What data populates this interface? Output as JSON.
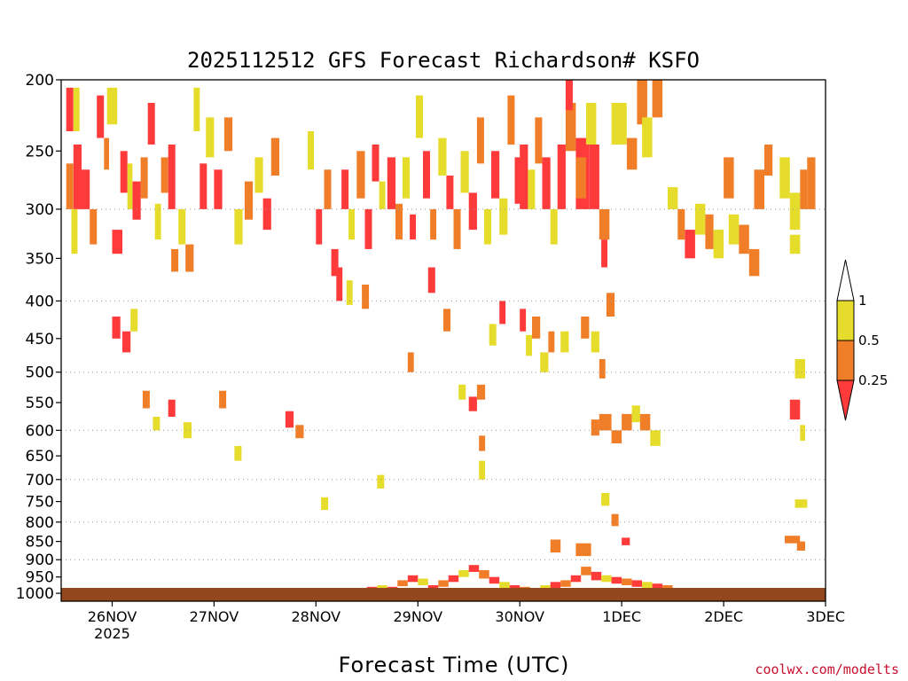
{
  "title": "2025112512 GFS Forecast Richardson# KSFO",
  "x_axis_title": "Forecast Time (UTC)",
  "credit": "coolwx.com/modelts",
  "colors": {
    "below_0_25": "#ff3a3a",
    "0_25_to_0_5": "#f07e28",
    "0_5_to_1": "#e6dc2c",
    "above_1": "#ffffff",
    "ground": "#92471d",
    "grid": "#9a9a9a"
  },
  "colorbar": {
    "labels": [
      "1",
      "0.5",
      "0.25"
    ]
  },
  "chart_data": {
    "type": "heatmap",
    "title": "2025112512 GFS Forecast Richardson# KSFO",
    "xlabel": "Forecast Time (UTC)",
    "ylabel": "",
    "x_ticks": [
      {
        "label": "26NOV",
        "sub": "2025",
        "day": 1
      },
      {
        "label": "27NOV",
        "sub": "",
        "day": 2
      },
      {
        "label": "28NOV",
        "sub": "",
        "day": 3
      },
      {
        "label": "29NOV",
        "sub": "",
        "day": 4
      },
      {
        "label": "30NOV",
        "sub": "",
        "day": 5
      },
      {
        "label": "1DEC",
        "sub": "",
        "day": 6
      },
      {
        "label": "2DEC",
        "sub": "",
        "day": 7
      },
      {
        "label": "3DEC",
        "sub": "",
        "day": 8
      }
    ],
    "xlim_days": [
      0.5,
      8.0
    ],
    "y_ticks": [
      200,
      250,
      300,
      350,
      400,
      450,
      500,
      550,
      600,
      650,
      700,
      750,
      800,
      850,
      900,
      950,
      1000
    ],
    "ylim_hpa": [
      200,
      1025
    ],
    "y_scale": "log",
    "dotted_gridlines_hpa": [
      300,
      400,
      500,
      600,
      700,
      800,
      900
    ],
    "legend_placement": "right",
    "classes": [
      {
        "label": "< 0.25",
        "color": "#ff3a3a"
      },
      {
        "label": "0.25 - 0.5",
        "color": "#f07e28"
      },
      {
        "label": "0.5 - 1",
        "color": "#e6dc2c"
      }
    ],
    "cells": [
      [
        0.55,
        0.62,
        205,
        235,
        0
      ],
      [
        0.62,
        0.68,
        205,
        235,
        2
      ],
      [
        0.62,
        0.7,
        245,
        300,
        0
      ],
      [
        0.55,
        0.62,
        260,
        300,
        1
      ],
      [
        0.68,
        0.78,
        265,
        300,
        0
      ],
      [
        0.78,
        0.85,
        300,
        335,
        1
      ],
      [
        0.6,
        0.66,
        300,
        345,
        2
      ],
      [
        0.85,
        0.92,
        210,
        240,
        0
      ],
      [
        0.92,
        0.97,
        240,
        265,
        1
      ],
      [
        0.95,
        1.05,
        205,
        230,
        2
      ],
      [
        1.0,
        1.1,
        320,
        345,
        0
      ],
      [
        1.08,
        1.15,
        250,
        285,
        0
      ],
      [
        1.15,
        1.2,
        260,
        300,
        2
      ],
      [
        1.2,
        1.28,
        275,
        310,
        0
      ],
      [
        1.28,
        1.35,
        255,
        290,
        1
      ],
      [
        1.35,
        1.42,
        215,
        245,
        0
      ],
      [
        1.42,
        1.48,
        295,
        330,
        2
      ],
      [
        1.48,
        1.55,
        255,
        285,
        1
      ],
      [
        1.55,
        1.62,
        245,
        300,
        0
      ],
      [
        1.58,
        1.65,
        340,
        365,
        1
      ],
      [
        1.65,
        1.72,
        300,
        335,
        2
      ],
      [
        1.72,
        1.8,
        335,
        365,
        1
      ],
      [
        1.8,
        1.86,
        205,
        235,
        2
      ],
      [
        1.86,
        1.93,
        260,
        300,
        0
      ],
      [
        1.0,
        1.08,
        420,
        450,
        0
      ],
      [
        1.1,
        1.18,
        440,
        470,
        0
      ],
      [
        1.18,
        1.25,
        410,
        440,
        2
      ],
      [
        1.3,
        1.37,
        530,
        560,
        1
      ],
      [
        1.4,
        1.47,
        575,
        600,
        2
      ],
      [
        1.55,
        1.62,
        545,
        575,
        0
      ],
      [
        1.7,
        1.78,
        585,
        615,
        2
      ],
      [
        1.92,
        2.0,
        225,
        255,
        2
      ],
      [
        2.0,
        2.08,
        265,
        300,
        0
      ],
      [
        2.1,
        2.18,
        225,
        250,
        1
      ],
      [
        2.2,
        2.28,
        300,
        335,
        2
      ],
      [
        2.3,
        2.38,
        275,
        310,
        1
      ],
      [
        2.4,
        2.48,
        255,
        285,
        2
      ],
      [
        2.48,
        2.56,
        290,
        320,
        0
      ],
      [
        2.56,
        2.64,
        240,
        270,
        1
      ],
      [
        2.7,
        2.78,
        565,
        595,
        0
      ],
      [
        2.8,
        2.88,
        590,
        615,
        1
      ],
      [
        2.05,
        2.12,
        530,
        560,
        1
      ],
      [
        2.2,
        2.27,
        630,
        660,
        2
      ],
      [
        2.92,
        2.98,
        235,
        265,
        2
      ],
      [
        3.0,
        3.06,
        300,
        335,
        0
      ],
      [
        3.08,
        3.15,
        265,
        300,
        1
      ],
      [
        3.15,
        3.22,
        340,
        370,
        0
      ],
      [
        3.25,
        3.32,
        265,
        300,
        0
      ],
      [
        3.32,
        3.38,
        300,
        330,
        2
      ],
      [
        3.4,
        3.48,
        250,
        290,
        1
      ],
      [
        3.48,
        3.55,
        300,
        340,
        0
      ],
      [
        3.55,
        3.62,
        245,
        275,
        0
      ],
      [
        3.62,
        3.68,
        275,
        300,
        2
      ],
      [
        3.7,
        3.78,
        255,
        300,
        0
      ],
      [
        3.78,
        3.85,
        295,
        330,
        1
      ],
      [
        3.85,
        3.92,
        255,
        290,
        2
      ],
      [
        3.92,
        3.98,
        305,
        330,
        0
      ],
      [
        3.2,
        3.26,
        360,
        400,
        0
      ],
      [
        3.3,
        3.36,
        375,
        405,
        2
      ],
      [
        3.45,
        3.52,
        380,
        410,
        1
      ],
      [
        3.6,
        3.67,
        690,
        720,
        2
      ],
      [
        3.9,
        3.96,
        470,
        500,
        1
      ],
      [
        3.05,
        3.12,
        740,
        770,
        2
      ],
      [
        3.98,
        4.05,
        210,
        240,
        2
      ],
      [
        4.05,
        4.12,
        250,
        290,
        0
      ],
      [
        4.12,
        4.18,
        300,
        330,
        1
      ],
      [
        4.2,
        4.28,
        240,
        270,
        2
      ],
      [
        4.28,
        4.35,
        270,
        300,
        0
      ],
      [
        4.35,
        4.42,
        300,
        340,
        1
      ],
      [
        4.42,
        4.5,
        250,
        285,
        2
      ],
      [
        4.5,
        4.58,
        285,
        320,
        0
      ],
      [
        4.58,
        4.65,
        225,
        260,
        1
      ],
      [
        4.65,
        4.72,
        300,
        335,
        2
      ],
      [
        4.72,
        4.8,
        250,
        290,
        0
      ],
      [
        4.8,
        4.88,
        290,
        325,
        2
      ],
      [
        4.88,
        4.95,
        210,
        245,
        1
      ],
      [
        4.95,
        5.02,
        255,
        295,
        0
      ],
      [
        4.1,
        4.17,
        360,
        390,
        0
      ],
      [
        4.25,
        4.32,
        410,
        440,
        1
      ],
      [
        4.4,
        4.47,
        520,
        545,
        2
      ],
      [
        4.5,
        4.58,
        540,
        565,
        0
      ],
      [
        4.58,
        4.66,
        520,
        545,
        1
      ],
      [
        4.7,
        4.77,
        430,
        460,
        2
      ],
      [
        4.8,
        4.86,
        400,
        430,
        0
      ],
      [
        4.6,
        4.66,
        610,
        640,
        1
      ],
      [
        4.6,
        4.66,
        660,
        700,
        2
      ],
      [
        5.0,
        5.08,
        245,
        300,
        0
      ],
      [
        5.08,
        5.15,
        265,
        300,
        2
      ],
      [
        5.15,
        5.22,
        225,
        260,
        1
      ],
      [
        5.22,
        5.3,
        255,
        300,
        0
      ],
      [
        5.3,
        5.37,
        300,
        335,
        2
      ],
      [
        5.37,
        5.45,
        245,
        300,
        0
      ],
      [
        5.45,
        5.55,
        215,
        250,
        1
      ],
      [
        5.55,
        5.68,
        240,
        300,
        0
      ],
      [
        5.45,
        5.52,
        200,
        220,
        0
      ],
      [
        5.0,
        5.06,
        410,
        440,
        0
      ],
      [
        5.06,
        5.12,
        445,
        475,
        2
      ],
      [
        5.12,
        5.2,
        420,
        450,
        1
      ],
      [
        5.2,
        5.28,
        470,
        500,
        2
      ],
      [
        5.28,
        5.34,
        440,
        470,
        1
      ],
      [
        5.4,
        5.48,
        440,
        470,
        2
      ],
      [
        5.55,
        5.65,
        255,
        290,
        1
      ],
      [
        5.68,
        5.78,
        245,
        300,
        0
      ],
      [
        5.65,
        5.75,
        215,
        245,
        2
      ],
      [
        5.78,
        5.88,
        300,
        330,
        1
      ],
      [
        5.8,
        5.86,
        330,
        360,
        0
      ],
      [
        5.6,
        5.68,
        420,
        450,
        1
      ],
      [
        5.7,
        5.78,
        440,
        470,
        2
      ],
      [
        5.78,
        5.84,
        480,
        510,
        1
      ],
      [
        5.85,
        5.93,
        390,
        420,
        1
      ],
      [
        5.7,
        5.78,
        580,
        610,
        1
      ],
      [
        5.78,
        5.9,
        570,
        600,
        1
      ],
      [
        5.9,
        6.0,
        600,
        625,
        1
      ],
      [
        6.0,
        6.1,
        570,
        600,
        1
      ],
      [
        6.1,
        6.18,
        555,
        585,
        2
      ],
      [
        6.18,
        6.28,
        570,
        600,
        1
      ],
      [
        6.28,
        6.38,
        600,
        630,
        2
      ],
      [
        5.8,
        5.88,
        730,
        760,
        2
      ],
      [
        5.9,
        5.97,
        780,
        810,
        1
      ],
      [
        5.55,
        5.7,
        855,
        890,
        1
      ],
      [
        6.0,
        6.08,
        840,
        860,
        0
      ],
      [
        5.3,
        5.4,
        845,
        880,
        1
      ],
      [
        5.9,
        6.05,
        215,
        245,
        2
      ],
      [
        6.05,
        6.15,
        240,
        265,
        1
      ],
      [
        6.15,
        6.25,
        200,
        230,
        1
      ],
      [
        6.2,
        6.3,
        225,
        255,
        2
      ],
      [
        6.3,
        6.4,
        200,
        225,
        1
      ],
      [
        6.45,
        6.55,
        280,
        300,
        2
      ],
      [
        6.55,
        6.62,
        300,
        330,
        1
      ],
      [
        6.62,
        6.72,
        320,
        350,
        0
      ],
      [
        6.72,
        6.82,
        295,
        325,
        2
      ],
      [
        6.82,
        6.9,
        305,
        340,
        1
      ],
      [
        6.9,
        7.0,
        320,
        350,
        2
      ],
      [
        7.0,
        7.1,
        255,
        290,
        1
      ],
      [
        7.05,
        7.15,
        305,
        335,
        2
      ],
      [
        7.15,
        7.25,
        315,
        345,
        1
      ],
      [
        7.25,
        7.35,
        340,
        370,
        1
      ],
      [
        7.3,
        7.4,
        265,
        300,
        1
      ],
      [
        7.4,
        7.48,
        245,
        270,
        1
      ],
      [
        7.55,
        7.65,
        255,
        290,
        2
      ],
      [
        7.65,
        7.75,
        285,
        320,
        2
      ],
      [
        7.75,
        7.82,
        265,
        300,
        1
      ],
      [
        7.82,
        7.9,
        255,
        300,
        1
      ],
      [
        7.65,
        7.75,
        325,
        345,
        2
      ],
      [
        7.7,
        7.8,
        480,
        510,
        2
      ],
      [
        7.65,
        7.75,
        545,
        580,
        0
      ],
      [
        7.75,
        7.8,
        590,
        620,
        2
      ],
      [
        7.7,
        7.82,
        745,
        765,
        2
      ],
      [
        7.6,
        7.75,
        835,
        855,
        1
      ],
      [
        7.72,
        7.8,
        850,
        875,
        1
      ]
    ],
    "surface": [
      [
        0.55,
        0.7,
        990,
        1000,
        1
      ],
      [
        0.7,
        0.85,
        985,
        998,
        0
      ],
      [
        1.5,
        1.6,
        995,
        1002,
        1
      ],
      [
        2.1,
        2.2,
        990,
        998,
        1
      ],
      [
        2.6,
        2.7,
        995,
        1003,
        1
      ],
      [
        3.1,
        3.2,
        990,
        997,
        0
      ],
      [
        3.4,
        3.5,
        985,
        995,
        1
      ],
      [
        3.5,
        3.6,
        980,
        992,
        0
      ],
      [
        3.6,
        3.7,
        975,
        990,
        2
      ],
      [
        3.7,
        3.8,
        980,
        995,
        0
      ],
      [
        3.8,
        3.9,
        960,
        978,
        1
      ],
      [
        3.9,
        4.0,
        945,
        965,
        0
      ],
      [
        4.0,
        4.1,
        955,
        975,
        2
      ],
      [
        4.1,
        4.2,
        975,
        990,
        0
      ],
      [
        4.2,
        4.3,
        960,
        980,
        1
      ],
      [
        4.3,
        4.4,
        945,
        965,
        0
      ],
      [
        4.4,
        4.5,
        930,
        950,
        2
      ],
      [
        4.5,
        4.6,
        915,
        935,
        0
      ],
      [
        4.6,
        4.7,
        930,
        955,
        1
      ],
      [
        4.7,
        4.8,
        950,
        970,
        0
      ],
      [
        4.8,
        4.9,
        965,
        985,
        2
      ],
      [
        4.9,
        5.0,
        975,
        990,
        0
      ],
      [
        5.0,
        5.1,
        980,
        995,
        1
      ],
      [
        5.1,
        5.2,
        985,
        998,
        0
      ],
      [
        5.2,
        5.3,
        975,
        990,
        2
      ],
      [
        5.3,
        5.4,
        965,
        985,
        0
      ],
      [
        5.4,
        5.5,
        960,
        980,
        1
      ],
      [
        5.5,
        5.6,
        945,
        965,
        0
      ],
      [
        5.6,
        5.7,
        920,
        945,
        1
      ],
      [
        5.7,
        5.8,
        935,
        960,
        0
      ],
      [
        5.8,
        5.9,
        945,
        965,
        2
      ],
      [
        5.9,
        6.0,
        950,
        970,
        0
      ],
      [
        6.0,
        6.1,
        955,
        975,
        1
      ],
      [
        6.1,
        6.2,
        960,
        980,
        0
      ],
      [
        6.2,
        6.3,
        965,
        985,
        2
      ],
      [
        6.3,
        6.4,
        970,
        990,
        0
      ],
      [
        6.4,
        6.5,
        975,
        992,
        1
      ],
      [
        6.5,
        6.6,
        985,
        998,
        0
      ],
      [
        7.8,
        7.9,
        990,
        1000,
        1
      ],
      [
        7.9,
        8.0,
        985,
        998,
        0
      ]
    ]
  }
}
